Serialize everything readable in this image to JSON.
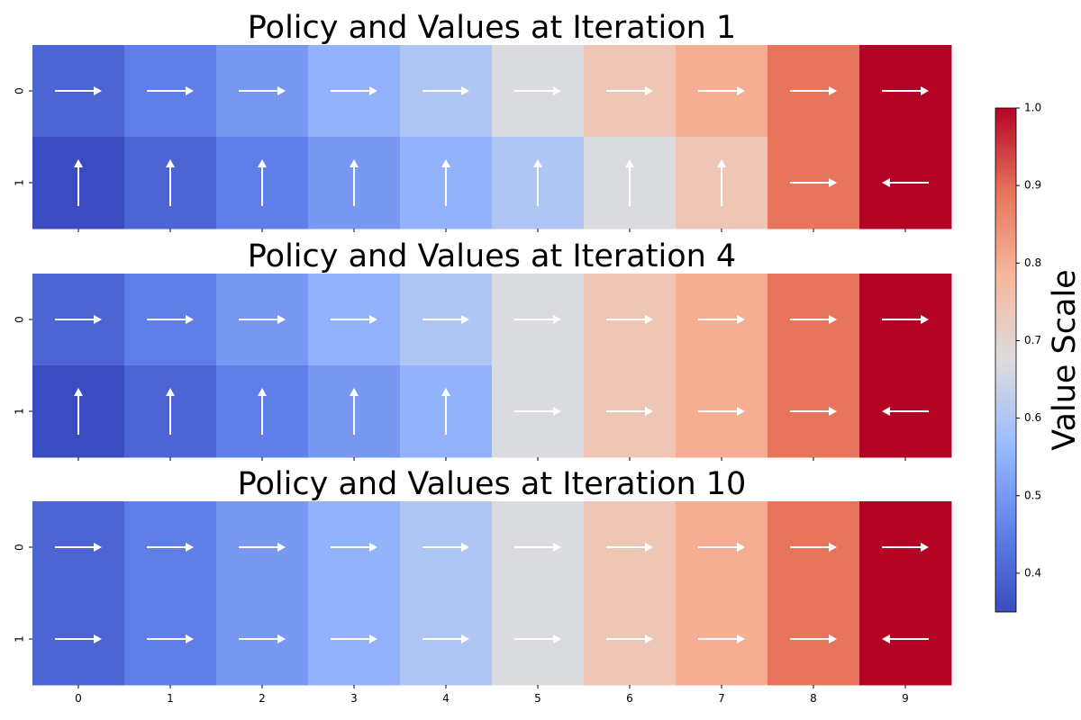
{
  "chart_data": {
    "type": "heatmap",
    "colormap": "coolwarm",
    "columns": [
      "0",
      "1",
      "2",
      "3",
      "4",
      "5",
      "6",
      "7",
      "8",
      "9"
    ],
    "rows": [
      "0",
      "1"
    ],
    "panels": [
      {
        "title": "Policy and Values at Iteration 1",
        "values": [
          [
            0.4,
            0.45,
            0.5,
            0.55,
            0.6,
            0.67,
            0.74,
            0.8,
            0.89,
            1.0
          ],
          [
            0.35,
            0.4,
            0.45,
            0.5,
            0.55,
            0.6,
            0.67,
            0.74,
            0.89,
            1.0
          ]
        ],
        "policy": [
          [
            "right",
            "right",
            "right",
            "right",
            "right",
            "right",
            "right",
            "right",
            "right",
            "right"
          ],
          [
            "up",
            "up",
            "up",
            "up",
            "up",
            "up",
            "up",
            "up",
            "right",
            "left"
          ]
        ]
      },
      {
        "title": "Policy and Values at Iteration 4",
        "values": [
          [
            0.4,
            0.45,
            0.5,
            0.55,
            0.6,
            0.67,
            0.74,
            0.8,
            0.89,
            1.0
          ],
          [
            0.35,
            0.4,
            0.45,
            0.5,
            0.55,
            0.67,
            0.74,
            0.8,
            0.89,
            1.0
          ]
        ],
        "policy": [
          [
            "right",
            "right",
            "right",
            "right",
            "right",
            "right",
            "right",
            "right",
            "right",
            "right"
          ],
          [
            "up",
            "up",
            "up",
            "up",
            "up",
            "right",
            "right",
            "right",
            "right",
            "left"
          ]
        ]
      },
      {
        "title": "Policy and Values at Iteration 10",
        "values": [
          [
            0.4,
            0.45,
            0.5,
            0.55,
            0.6,
            0.67,
            0.74,
            0.8,
            0.89,
            1.0
          ],
          [
            0.4,
            0.45,
            0.5,
            0.55,
            0.6,
            0.67,
            0.74,
            0.8,
            0.89,
            1.0
          ]
        ],
        "policy": [
          [
            "right",
            "right",
            "right",
            "right",
            "right",
            "right",
            "right",
            "right",
            "right",
            "right"
          ],
          [
            "right",
            "right",
            "right",
            "right",
            "right",
            "right",
            "right",
            "right",
            "right",
            "left"
          ]
        ]
      }
    ],
    "colorbar": {
      "label": "Value Scale",
      "vmin": 0.35,
      "vmax": 1.0,
      "ticks": [
        "0.4",
        "0.5",
        "0.6",
        "0.7",
        "0.8",
        "0.9",
        "1.0"
      ]
    }
  }
}
